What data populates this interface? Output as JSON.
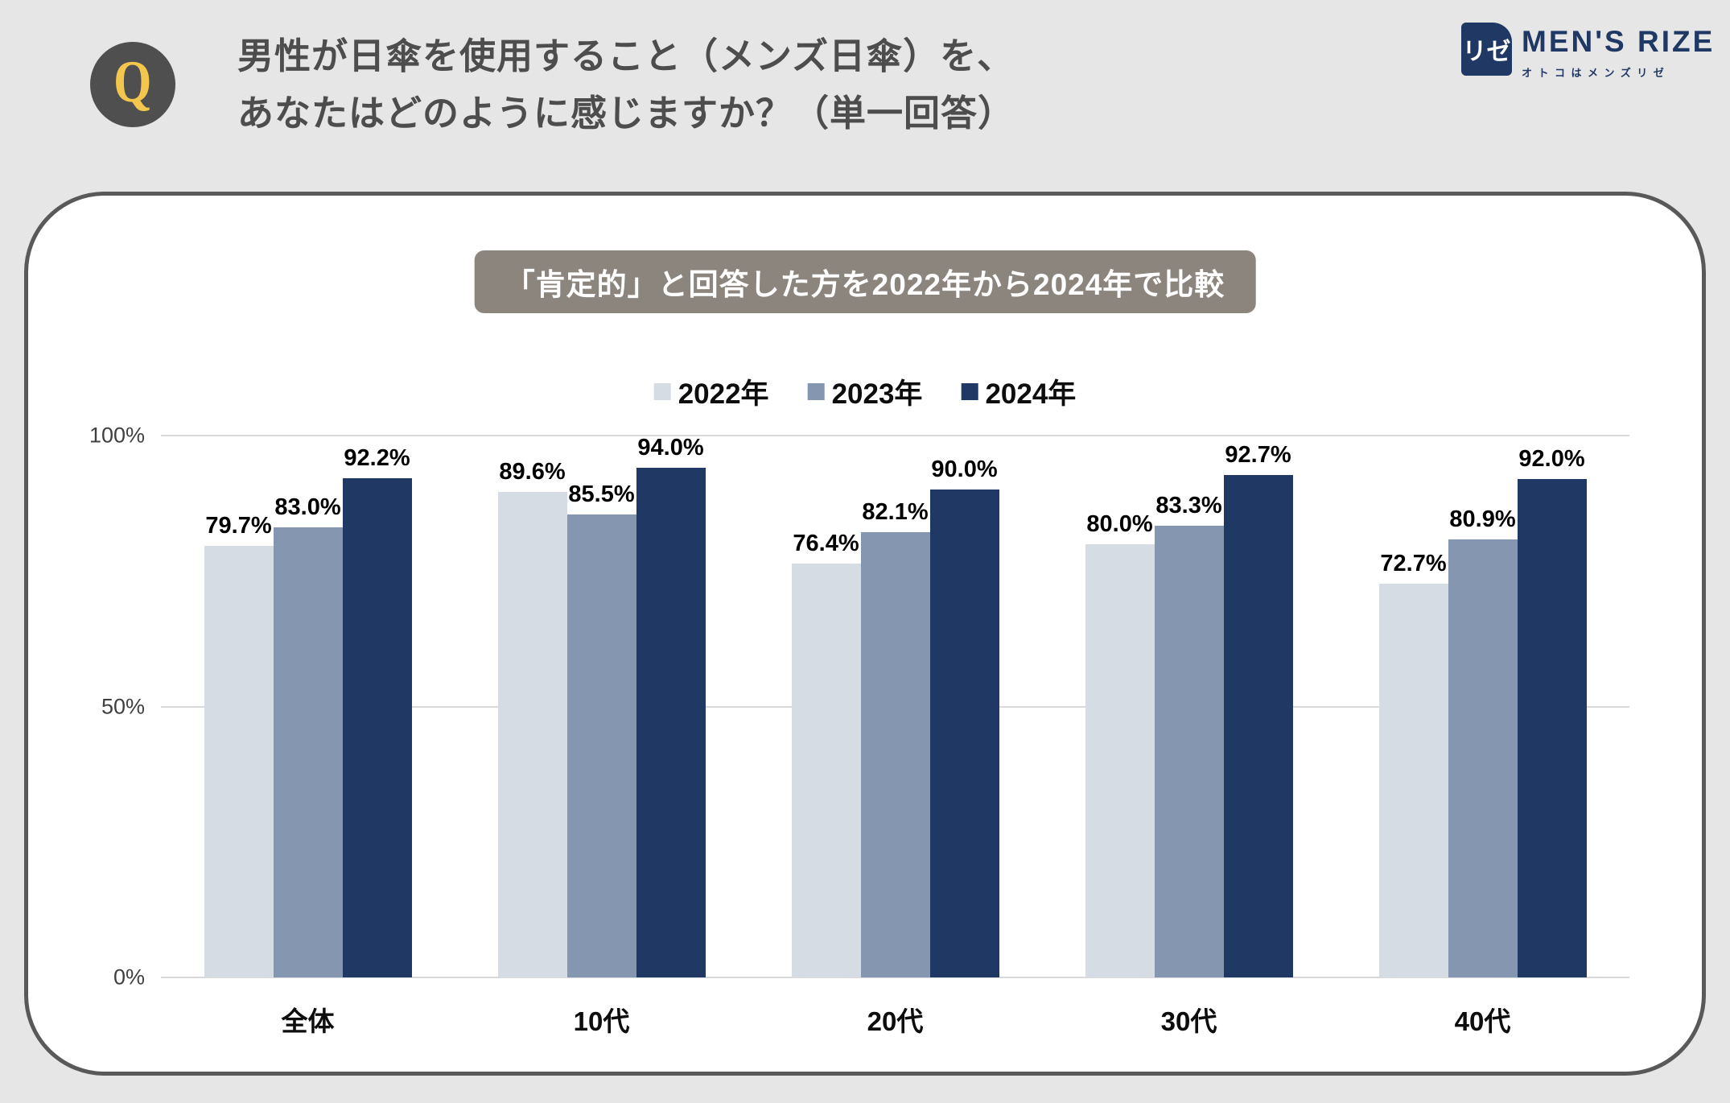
{
  "header": {
    "q_label": "Q",
    "question_line1": "男性が日傘を使用すること（メンズ日傘）を、",
    "question_line2": "あなたはどのように感じますか？（単一回答）",
    "logo": {
      "mark_text": "リゼ",
      "brand": "MEN'S RIZE",
      "tagline": "オトコはメンズリゼ"
    }
  },
  "panel": {
    "title_badge": "「肯定的」と回答した方を2022年から2024年で比較"
  },
  "chart_data": {
    "type": "bar",
    "title": "「肯定的」と回答した方を2022年から2024年で比較",
    "categories": [
      "全体",
      "10代",
      "20代",
      "30代",
      "40代"
    ],
    "series": [
      {
        "name": "2022年",
        "color": "#d6dce4",
        "values": [
          79.7,
          89.6,
          76.4,
          80.0,
          72.7
        ]
      },
      {
        "name": "2023年",
        "color": "#8496b0",
        "values": [
          83.0,
          85.5,
          82.1,
          83.3,
          80.9
        ]
      },
      {
        "name": "2024年",
        "color": "#1f3864",
        "values": [
          92.2,
          94.0,
          90.0,
          92.7,
          92.0
        ]
      }
    ],
    "value_suffix": "%",
    "yticks": {
      "top": "100%",
      "mid": "50%",
      "bottom": "0%"
    },
    "ylim": [
      0,
      100
    ],
    "grid": true,
    "legend_position": "top-center",
    "label_format": "one-decimal-percent"
  },
  "colors": {
    "page_background": "#e6e6e6",
    "panel_border": "#595959",
    "question_text": "#4d4d4d",
    "q_circle_bg": "#4f4f4f",
    "q_letter": "#f3c74d",
    "brand_navy": "#1f3864",
    "title_badge_bg": "#8b857e",
    "gridline": "#d9d9d9"
  }
}
